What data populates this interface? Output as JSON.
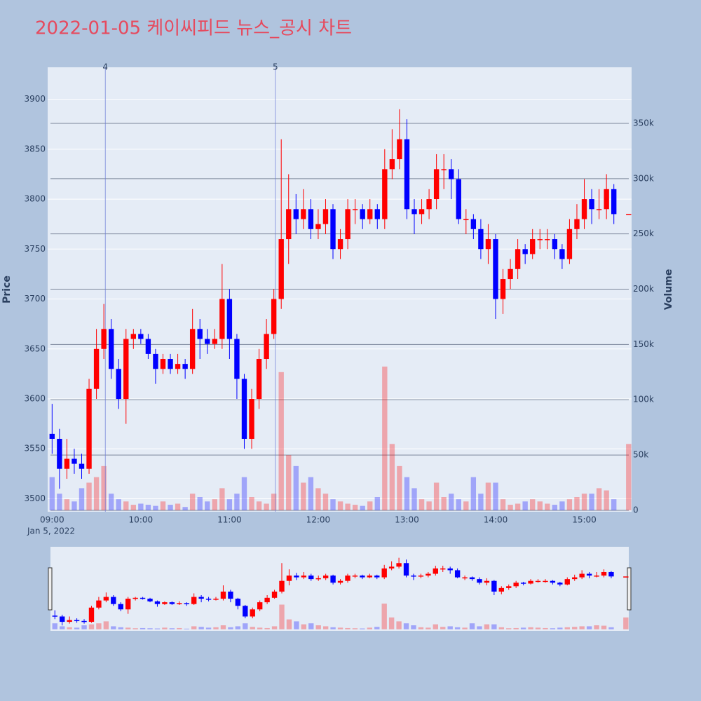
{
  "chart_data": {
    "type": "candlestick",
    "title": "2022-01-05 케이씨피드 뉴스_공시 차트",
    "y_label": "Price",
    "y2_label": "Volume",
    "x_date_label": "Jan 5, 2022",
    "increasing_color": "#ff0000",
    "decreasing_color": "#0000ff",
    "x": [
      "09:00",
      "09:05",
      "09:10",
      "09:15",
      "09:20",
      "09:25",
      "09:30",
      "09:35",
      "09:40",
      "09:45",
      "09:50",
      "09:55",
      "10:00",
      "10:05",
      "10:10",
      "10:15",
      "10:20",
      "10:25",
      "10:30",
      "10:35",
      "10:40",
      "10:45",
      "10:50",
      "10:55",
      "11:00",
      "11:05",
      "11:10",
      "11:15",
      "11:20",
      "11:25",
      "11:30",
      "11:35",
      "11:40",
      "11:45",
      "11:50",
      "11:55",
      "12:00",
      "12:05",
      "12:10",
      "12:15",
      "12:20",
      "12:25",
      "12:30",
      "12:35",
      "12:40",
      "12:45",
      "12:50",
      "12:55",
      "13:00",
      "13:05",
      "13:10",
      "13:15",
      "13:20",
      "13:25",
      "13:30",
      "13:35",
      "13:40",
      "13:45",
      "13:50",
      "13:55",
      "14:00",
      "14:05",
      "14:10",
      "14:15",
      "14:20",
      "14:25",
      "14:30",
      "14:35",
      "14:40",
      "14:45",
      "14:50",
      "14:55",
      "15:00",
      "15:05",
      "15:10",
      "15:15",
      "15:20",
      "15:30"
    ],
    "open": [
      3565,
      3560,
      3530,
      3540,
      3535,
      3530,
      3610,
      3650,
      3670,
      3630,
      3600,
      3660,
      3665,
      3660,
      3645,
      3630,
      3640,
      3630,
      3635,
      3630,
      3670,
      3660,
      3655,
      3660,
      3700,
      3660,
      3620,
      3560,
      3600,
      3640,
      3665,
      3700,
      3760,
      3790,
      3780,
      3790,
      3770,
      3775,
      3790,
      3750,
      3760,
      3790,
      3790,
      3780,
      3790,
      3780,
      3830,
      3840,
      3860,
      3790,
      3785,
      3790,
      3800,
      3830,
      3830,
      3820,
      3780,
      3780,
      3770,
      3750,
      3760,
      3700,
      3720,
      3730,
      3750,
      3745,
      3760,
      3760,
      3760,
      3750,
      3740,
      3770,
      3780,
      3800,
      3790,
      3790,
      3810,
      3785
    ],
    "high": [
      3595,
      3570,
      3560,
      3550,
      3545,
      3620,
      3670,
      3695,
      3680,
      3640,
      3670,
      3670,
      3670,
      3665,
      3650,
      3645,
      3645,
      3645,
      3640,
      3690,
      3680,
      3670,
      3670,
      3735,
      3710,
      3665,
      3625,
      3610,
      3650,
      3680,
      3710,
      3860,
      3825,
      3805,
      3810,
      3800,
      3790,
      3800,
      3795,
      3770,
      3800,
      3800,
      3795,
      3800,
      3795,
      3850,
      3870,
      3890,
      3880,
      3800,
      3800,
      3810,
      3845,
      3845,
      3840,
      3830,
      3790,
      3785,
      3780,
      3775,
      3765,
      3730,
      3740,
      3760,
      3755,
      3770,
      3770,
      3770,
      3765,
      3755,
      3780,
      3795,
      3820,
      3810,
      3810,
      3825,
      3815,
      3785
    ],
    "low": [
      3545,
      3510,
      3520,
      3525,
      3520,
      3525,
      3600,
      3640,
      3620,
      3590,
      3575,
      3650,
      3655,
      3640,
      3615,
      3625,
      3625,
      3625,
      3620,
      3625,
      3640,
      3645,
      3650,
      3650,
      3640,
      3600,
      3550,
      3550,
      3590,
      3630,
      3660,
      3690,
      3735,
      3765,
      3770,
      3760,
      3760,
      3765,
      3740,
      3740,
      3750,
      3775,
      3770,
      3775,
      3770,
      3770,
      3820,
      3830,
      3780,
      3765,
      3775,
      3780,
      3790,
      3810,
      3800,
      3775,
      3765,
      3760,
      3740,
      3735,
      3680,
      3685,
      3710,
      3720,
      3735,
      3740,
      3750,
      3750,
      3740,
      3730,
      3735,
      3760,
      3770,
      3775,
      3780,
      3780,
      3775,
      3785
    ],
    "close": [
      3560,
      3530,
      3540,
      3535,
      3530,
      3610,
      3650,
      3670,
      3630,
      3600,
      3660,
      3665,
      3660,
      3645,
      3630,
      3640,
      3630,
      3635,
      3630,
      3670,
      3660,
      3655,
      3660,
      3700,
      3660,
      3620,
      3560,
      3600,
      3640,
      3665,
      3700,
      3760,
      3790,
      3780,
      3790,
      3770,
      3775,
      3790,
      3750,
      3760,
      3790,
      3790,
      3780,
      3790,
      3780,
      3830,
      3840,
      3860,
      3790,
      3785,
      3790,
      3800,
      3830,
      3830,
      3820,
      3780,
      3780,
      3770,
      3750,
      3760,
      3700,
      3720,
      3730,
      3750,
      3745,
      3760,
      3760,
      3760,
      3750,
      3740,
      3770,
      3780,
      3800,
      3790,
      3790,
      3810,
      3785,
      3785
    ],
    "volume": [
      30000,
      15000,
      10000,
      8000,
      20000,
      25000,
      30000,
      40000,
      15000,
      10000,
      8000,
      5000,
      6000,
      5000,
      4000,
      8000,
      5000,
      6000,
      3000,
      15000,
      12000,
      8000,
      10000,
      20000,
      10000,
      15000,
      30000,
      12000,
      8000,
      6000,
      15000,
      125000,
      50000,
      40000,
      25000,
      30000,
      20000,
      15000,
      10000,
      8000,
      6000,
      5000,
      4000,
      8000,
      12000,
      130000,
      60000,
      40000,
      30000,
      20000,
      10000,
      8000,
      25000,
      12000,
      15000,
      10000,
      8000,
      30000,
      15000,
      25000,
      25000,
      10000,
      5000,
      6000,
      8000,
      10000,
      8000,
      6000,
      5000,
      8000,
      10000,
      12000,
      15000,
      15000,
      20000,
      18000,
      10000,
      60000
    ],
    "xlim": [
      "08:57",
      "15:32"
    ],
    "xticks": [
      "09:00",
      "10:00",
      "11:00",
      "12:00",
      "13:00",
      "14:00",
      "15:00"
    ],
    "ylim": [
      3487,
      3932
    ],
    "yticks": [
      3500,
      3550,
      3600,
      3650,
      3700,
      3750,
      3800,
      3850,
      3900
    ],
    "y2lim": [
      -1300,
      400700
    ],
    "y2ticks": [
      0,
      {
        "value": 50000,
        "label": "50k"
      },
      {
        "value": 100000,
        "label": "100k"
      },
      {
        "value": 150000,
        "label": "150k"
      },
      {
        "value": 200000,
        "label": "200k"
      },
      {
        "value": 250000,
        "label": "250k"
      },
      {
        "value": 300000,
        "label": "300k"
      },
      {
        "value": 350000,
        "label": "350k"
      }
    ],
    "annotations": [
      {
        "x": "09:36",
        "label": "4"
      },
      {
        "x": "11:31",
        "label": "5"
      }
    ]
  }
}
